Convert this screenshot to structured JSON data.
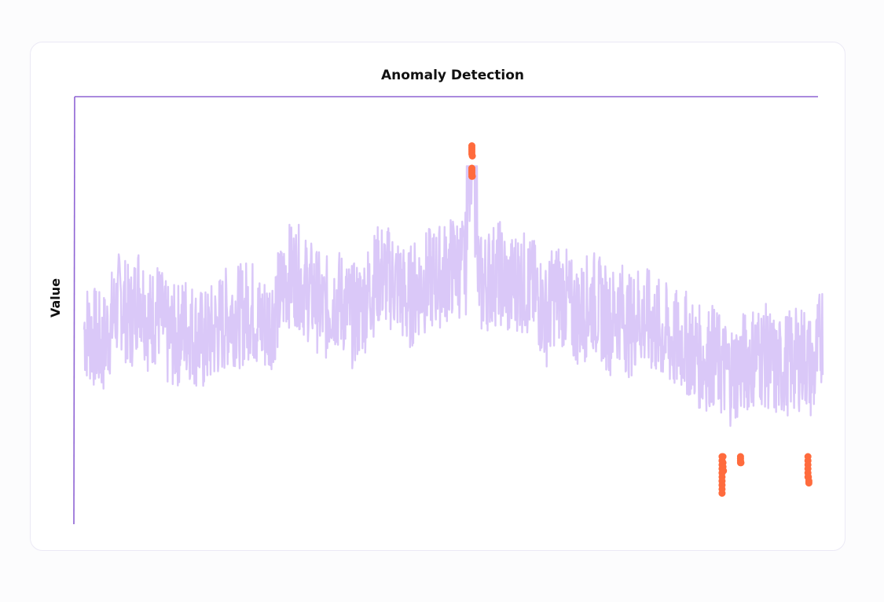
{
  "chart_data": {
    "type": "line",
    "title": "Anomaly Detection",
    "xlabel": "",
    "ylabel": "Value",
    "x_range": [
      0,
      800
    ],
    "ylim": [
      0,
      100
    ],
    "grid": false,
    "legend": "none",
    "series": [
      {
        "role": "signal",
        "color": "#dac8f8",
        "anchors": [
          [
            0,
            46.0
          ],
          [
            10,
            44.0
          ],
          [
            20,
            41.5
          ],
          [
            30,
            48.0
          ],
          [
            40,
            53.5
          ],
          [
            50,
            47.5
          ],
          [
            60,
            56.0
          ],
          [
            70,
            47.5
          ],
          [
            80,
            50.5
          ],
          [
            90,
            44.0
          ],
          [
            100,
            44.0
          ],
          [
            110,
            47.0
          ],
          [
            120,
            44.5
          ],
          [
            130,
            42.5
          ],
          [
            140,
            45.0
          ],
          [
            150,
            47.5
          ],
          [
            160,
            50.0
          ],
          [
            170,
            49.0
          ],
          [
            180,
            51.5
          ],
          [
            190,
            47.0
          ],
          [
            200,
            47.5
          ],
          [
            210,
            52.5
          ],
          [
            220,
            59.0
          ],
          [
            230,
            59.5
          ],
          [
            240,
            56.0
          ],
          [
            250,
            54.0
          ],
          [
            260,
            50.0
          ],
          [
            270,
            53.5
          ],
          [
            280,
            52.5
          ],
          [
            290,
            49.0
          ],
          [
            300,
            51.0
          ],
          [
            310,
            55.5
          ],
          [
            320,
            59.5
          ],
          [
            330,
            58.5
          ],
          [
            340,
            57.0
          ],
          [
            350,
            52.5
          ],
          [
            360,
            56.0
          ],
          [
            370,
            57.5
          ],
          [
            380,
            58.5
          ],
          [
            390,
            59.5
          ],
          [
            400,
            61.5
          ],
          [
            410,
            61.0
          ],
          [
            420,
            64.0
          ],
          [
            430,
            56.5
          ],
          [
            440,
            59.0
          ],
          [
            450,
            60.0
          ],
          [
            460,
            55.5
          ],
          [
            470,
            58.5
          ],
          [
            480,
            56.5
          ],
          [
            490,
            54.5
          ],
          [
            500,
            49.0
          ],
          [
            510,
            55.0
          ],
          [
            520,
            54.0
          ],
          [
            530,
            49.5
          ],
          [
            540,
            50.0
          ],
          [
            550,
            53.0
          ],
          [
            560,
            50.5
          ],
          [
            570,
            47.5
          ],
          [
            580,
            51.0
          ],
          [
            590,
            46.5
          ],
          [
            600,
            49.5
          ],
          [
            610,
            48.0
          ],
          [
            620,
            46.0
          ],
          [
            630,
            44.5
          ],
          [
            640,
            42.5
          ],
          [
            650,
            43.0
          ],
          [
            660,
            40.5
          ],
          [
            670,
            38.0
          ],
          [
            680,
            39.5
          ],
          [
            690,
            36.5
          ],
          [
            700,
            35.0
          ],
          [
            710,
            36.5
          ],
          [
            720,
            38.5
          ],
          [
            730,
            40.0
          ],
          [
            740,
            39.0
          ],
          [
            750,
            35.5
          ],
          [
            760,
            37.5
          ],
          [
            770,
            38.0
          ],
          [
            780,
            39.5
          ],
          [
            790,
            35.0
          ],
          [
            800,
            46.5
          ]
        ]
      },
      {
        "role": "anomalies",
        "color": "#ff6b3d",
        "points": [
          [
            420,
            91.0
          ],
          [
            420,
            90.5
          ],
          [
            420,
            90.0
          ],
          [
            420,
            89.5
          ],
          [
            420,
            89.0
          ],
          [
            420.5,
            88.5
          ],
          [
            420,
            85.5
          ],
          [
            420,
            85.0
          ],
          [
            420,
            84.5
          ],
          [
            420,
            84.0
          ],
          [
            420,
            83.5
          ],
          [
            420.5,
            83.5
          ],
          [
            691,
            14.5
          ],
          [
            691,
            13.5
          ],
          [
            691,
            12.5
          ],
          [
            691,
            11.5
          ],
          [
            691,
            10.5
          ],
          [
            691,
            9.5
          ],
          [
            691,
            8.5
          ],
          [
            691,
            7.5
          ],
          [
            691,
            6.5
          ],
          [
            691,
            5.5
          ],
          [
            692,
            14.5
          ],
          [
            692,
            13.0
          ],
          [
            692,
            12.0
          ],
          [
            692.5,
            11.0
          ],
          [
            711,
            14.5
          ],
          [
            711,
            14.0
          ],
          [
            711,
            13.5
          ],
          [
            711,
            13.0
          ],
          [
            711.5,
            13.0
          ],
          [
            784,
            14.5
          ],
          [
            784,
            13.5
          ],
          [
            784,
            12.5
          ],
          [
            784,
            11.5
          ],
          [
            784,
            10.5
          ],
          [
            784,
            9.5
          ],
          [
            784.5,
            9.5
          ],
          [
            785,
            8.5
          ],
          [
            785,
            8.0
          ]
        ]
      }
    ]
  }
}
